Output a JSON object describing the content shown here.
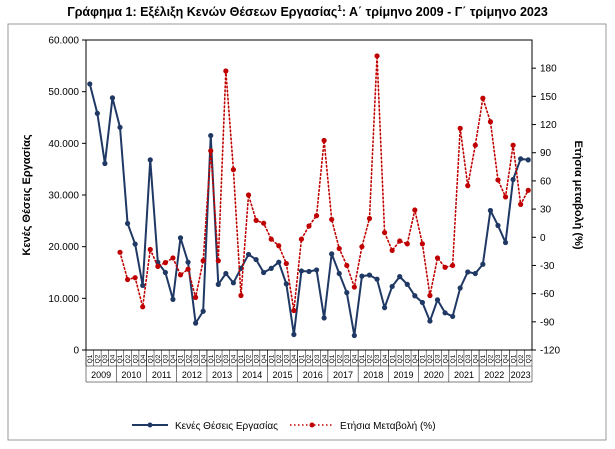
{
  "chart_data": {
    "type": "line",
    "title_main": "Γράφημα 1: Εξέλιξη Κενών Θέσεων Εργασίας",
    "title_sup": "1",
    "title_rest": ": Α΄ τρίμηνο 2009 - Γ΄ τρίμηνο 2023",
    "ylabel": "Κενές Θέσεις Εργασίας",
    "y2label": "Ετήσια μεταβολή (%)",
    "ylim": [
      0,
      60000
    ],
    "y_ticks": [
      "0",
      "10.000",
      "20.000",
      "30.000",
      "40.000",
      "50.000",
      "60.000"
    ],
    "y2lim": [
      -120,
      210
    ],
    "y2_ticks": [
      "-120",
      "-90",
      "-60",
      "-30",
      "0",
      "30",
      "60",
      "90",
      "120",
      "150",
      "180"
    ],
    "quarter_labels": [
      "Q1",
      "Q2",
      "Q3",
      "Q4"
    ],
    "years": [
      "2009",
      "2010",
      "2011",
      "2012",
      "2013",
      "2014",
      "2015",
      "2016",
      "2017",
      "2018",
      "2019",
      "2020",
      "2021",
      "2022",
      "2023"
    ],
    "series": [
      {
        "name": "Κενές Θέσεις Εργασίας",
        "axis": "left",
        "color": "#1f3864",
        "values": [
          51500,
          45800,
          36100,
          48800,
          43100,
          24500,
          20500,
          12500,
          36800,
          17000,
          15000,
          9800,
          21700,
          17000,
          5200,
          7500,
          41500,
          12700,
          14800,
          13000,
          15800,
          18500,
          17500,
          15000,
          15800,
          17000,
          12800,
          3000,
          15300,
          15200,
          15500,
          6200,
          18600,
          14800,
          11100,
          2800,
          14300,
          14500,
          13700,
          8200,
          12300,
          14200,
          12700,
          10500,
          9200,
          5600,
          9700,
          7200,
          6500,
          12000,
          15100,
          14800,
          16600,
          27000,
          24100,
          20800,
          33000,
          37000,
          36800
        ]
      },
      {
        "name": "Ετήσια Μεταβολή (%)",
        "axis": "right",
        "color": "#c00000",
        "values": [
          null,
          null,
          null,
          null,
          -16,
          -45,
          -43,
          -74,
          -13,
          -31,
          -27,
          -22,
          -40,
          -34,
          -64,
          -25,
          92,
          -25,
          177,
          72,
          -62,
          45,
          18,
          15,
          -2,
          -9,
          -28,
          -78,
          -2,
          12,
          23,
          103,
          19,
          -12,
          -30,
          -53,
          -10,
          20,
          193,
          5,
          -14,
          -4,
          -7,
          29,
          -7,
          -62,
          -22,
          -32,
          -30,
          116,
          55,
          98,
          148,
          123,
          61,
          43,
          98,
          35,
          50
        ]
      }
    ],
    "legend": {
      "placement": "bottom",
      "entries": [
        "Κενές Θέσεις Εργασίας",
        "Ετήσια Μεταβολή (%)"
      ]
    },
    "grid": false
  }
}
